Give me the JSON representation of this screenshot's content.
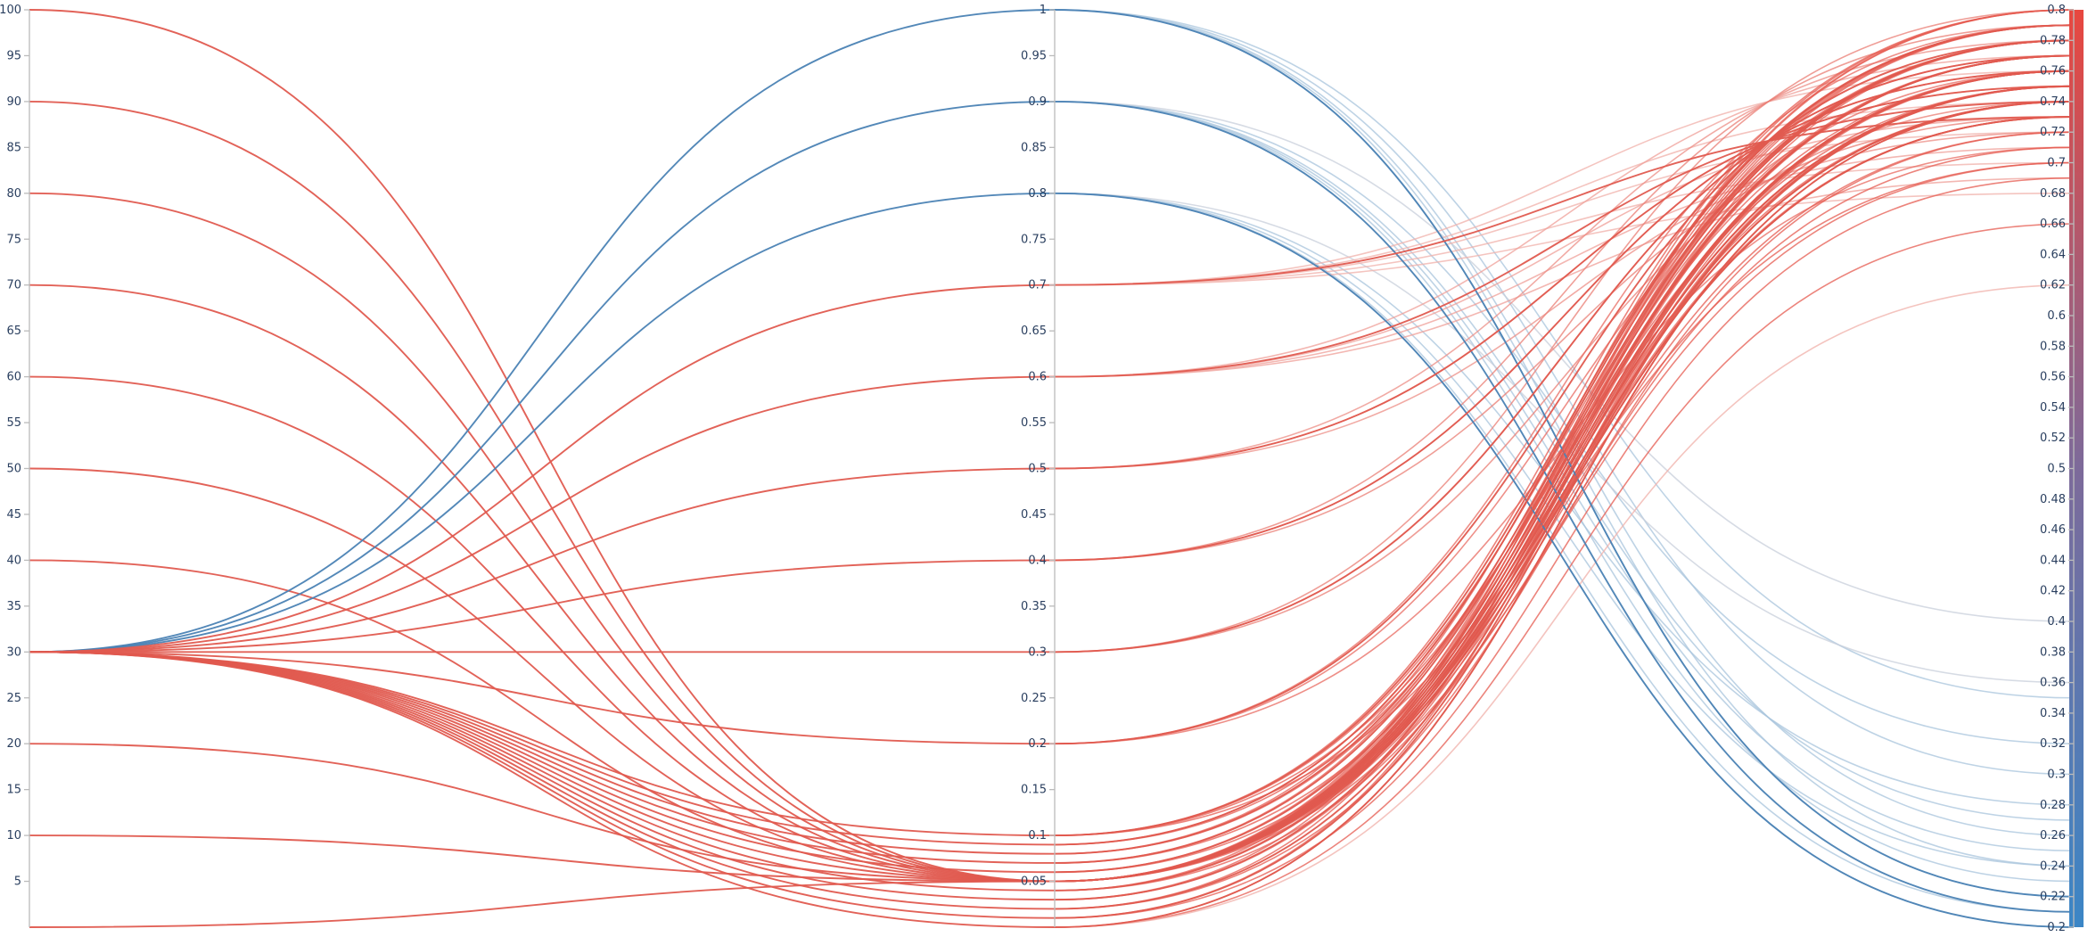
{
  "chart_data": {
    "type": "parallel-categories-curves",
    "colorscale": {
      "min": 0.2,
      "max": 0.8,
      "low_color": "#3b86c6",
      "high_color": "#e8473f"
    },
    "axes": [
      {
        "name": "",
        "range": [
          0,
          100
        ],
        "ticks": [
          5,
          10,
          15,
          20,
          25,
          30,
          35,
          40,
          45,
          50,
          55,
          60,
          65,
          70,
          75,
          80,
          85,
          90,
          95,
          100
        ],
        "tick_labels": [
          "5",
          "10",
          "15",
          "20",
          "25",
          "30",
          "35",
          "40",
          "45",
          "50",
          "55",
          "60",
          "65",
          "70",
          "75",
          "80",
          "85",
          "90",
          "95",
          "100"
        ]
      },
      {
        "name": "",
        "range": [
          0,
          1
        ],
        "ticks": [
          0.05,
          0.1,
          0.15,
          0.2,
          0.25,
          0.3,
          0.35,
          0.4,
          0.45,
          0.5,
          0.55,
          0.6,
          0.65,
          0.7,
          0.75,
          0.8,
          0.85,
          0.9,
          0.95,
          1
        ],
        "tick_labels": [
          "0.05",
          "0.1",
          "0.15",
          "0.2",
          "0.25",
          "0.3",
          "0.35",
          "0.4",
          "0.45",
          "0.5",
          "0.55",
          "0.6",
          "0.65",
          "0.7",
          "0.75",
          "0.8",
          "0.85",
          "0.9",
          "0.95",
          "1"
        ]
      },
      {
        "name": "",
        "range": [
          0.2,
          0.8
        ],
        "ticks": [
          0.2,
          0.22,
          0.24,
          0.26,
          0.28,
          0.3,
          0.32,
          0.34,
          0.36,
          0.38,
          0.4,
          0.42,
          0.44,
          0.46,
          0.48,
          0.5,
          0.52,
          0.54,
          0.56,
          0.58,
          0.6,
          0.62,
          0.64,
          0.66,
          0.68,
          0.7,
          0.72,
          0.74,
          0.76,
          0.78,
          0.8
        ],
        "tick_labels": [
          "0.2",
          "0.22",
          "0.24",
          "0.26",
          "0.28",
          "0.3",
          "0.32",
          "0.34",
          "0.36",
          "0.38",
          "0.4",
          "0.42",
          "0.44",
          "0.46",
          "0.48",
          "0.5",
          "0.52",
          "0.54",
          "0.56",
          "0.58",
          "0.6",
          "0.62",
          "0.64",
          "0.66",
          "0.68",
          "0.7",
          "0.72",
          "0.74",
          "0.76",
          "0.78",
          "0.8"
        ],
        "colorbar": true
      }
    ],
    "solid_lines": [
      {
        "values": [
          100,
          0.05,
          0.78
        ],
        "color": "#e05a4f"
      },
      {
        "values": [
          90,
          0.05,
          0.77
        ],
        "color": "#e05a4f"
      },
      {
        "values": [
          80,
          0.05,
          0.76
        ],
        "color": "#e05a4f"
      },
      {
        "values": [
          70,
          0.05,
          0.76
        ],
        "color": "#e05a4f"
      },
      {
        "values": [
          60,
          0.05,
          0.75
        ],
        "color": "#e05a4f"
      },
      {
        "values": [
          50,
          0.05,
          0.75
        ],
        "color": "#e05a4f"
      },
      {
        "values": [
          40,
          0.05,
          0.74
        ],
        "color": "#e05a4f"
      },
      {
        "values": [
          20,
          0.05,
          0.74
        ],
        "color": "#e05a4f"
      },
      {
        "values": [
          10,
          0.05,
          0.73
        ],
        "color": "#e05a4f"
      },
      {
        "values": [
          0,
          0.05,
          0.73
        ],
        "color": "#e05a4f"
      },
      {
        "values": [
          30,
          1,
          0.22
        ],
        "color": "#4a82b4"
      },
      {
        "values": [
          30,
          0.9,
          0.21
        ],
        "color": "#4a82b4"
      },
      {
        "values": [
          30,
          0.8,
          0.2
        ],
        "color": "#4a82b4"
      },
      {
        "values": [
          30,
          0.7,
          0.73
        ],
        "color": "#e05a4f"
      },
      {
        "values": [
          30,
          0.6,
          0.74
        ],
        "color": "#e05a4f"
      },
      {
        "values": [
          30,
          0.5,
          0.75
        ],
        "color": "#e05a4f"
      },
      {
        "values": [
          30,
          0.4,
          0.76
        ],
        "color": "#e05a4f"
      },
      {
        "values": [
          30,
          0.3,
          0.77
        ],
        "color": "#e05a4f"
      },
      {
        "values": [
          30,
          0.2,
          0.78
        ],
        "color": "#e05a4f"
      },
      {
        "values": [
          30,
          0.1,
          0.79
        ],
        "color": "#e05a4f"
      },
      {
        "values": [
          30,
          0.09,
          0.79
        ],
        "color": "#e05a4f"
      },
      {
        "values": [
          30,
          0.08,
          0.78
        ],
        "color": "#e05a4f"
      },
      {
        "values": [
          30,
          0.07,
          0.78
        ],
        "color": "#e05a4f"
      },
      {
        "values": [
          30,
          0.06,
          0.77
        ],
        "color": "#e05a4f"
      },
      {
        "values": [
          30,
          0.05,
          0.77
        ],
        "color": "#e05a4f"
      },
      {
        "values": [
          30,
          0.04,
          0.76
        ],
        "color": "#e05a4f"
      },
      {
        "values": [
          30,
          0.03,
          0.76
        ],
        "color": "#e05a4f"
      },
      {
        "values": [
          30,
          0.02,
          0.75
        ],
        "color": "#e05a4f"
      },
      {
        "values": [
          30,
          0.01,
          0.75
        ],
        "color": "#e05a4f"
      },
      {
        "values": [
          30,
          0,
          0.74
        ],
        "color": "#e05a4f"
      }
    ],
    "faint_lines": [
      {
        "values": [
          1,
          0.35
        ],
        "color": "#a8c4dc"
      },
      {
        "values": [
          1,
          0.3
        ],
        "color": "#a8c4dc"
      },
      {
        "values": [
          1,
          0.26
        ],
        "color": "#a8c4dc"
      },
      {
        "values": [
          1,
          0.24
        ],
        "color": "#a8c4dc"
      },
      {
        "values": [
          1,
          0.22
        ],
        "color": "#a8c4dc"
      },
      {
        "values": [
          0.9,
          0.4
        ],
        "color": "#c8cfdb"
      },
      {
        "values": [
          0.9,
          0.32
        ],
        "color": "#a8c4dc"
      },
      {
        "values": [
          0.9,
          0.27
        ],
        "color": "#a8c4dc"
      },
      {
        "values": [
          0.9,
          0.25
        ],
        "color": "#a8c4dc"
      },
      {
        "values": [
          0.9,
          0.23
        ],
        "color": "#a8c4dc"
      },
      {
        "values": [
          0.8,
          0.36
        ],
        "color": "#c8cfdb"
      },
      {
        "values": [
          0.8,
          0.28
        ],
        "color": "#a8c4dc"
      },
      {
        "values": [
          0.8,
          0.24
        ],
        "color": "#a8c4dc"
      },
      {
        "values": [
          0.8,
          0.21
        ],
        "color": "#a8c4dc"
      },
      {
        "values": [
          0.8,
          0.2
        ],
        "color": "#a8c4dc"
      },
      {
        "values": [
          0.7,
          0.74
        ],
        "color": "#f0b0aa"
      },
      {
        "values": [
          0.7,
          0.72
        ],
        "color": "#f0b0aa"
      },
      {
        "values": [
          0.7,
          0.7
        ],
        "color": "#f0b0aa"
      },
      {
        "values": [
          0.7,
          0.68
        ],
        "color": "#f0b0aa"
      },
      {
        "values": [
          0.7,
          0.76
        ],
        "color": "#f0b0aa"
      },
      {
        "values": [
          0.6,
          0.77
        ],
        "color": "#ef9f98"
      },
      {
        "values": [
          0.6,
          0.73
        ],
        "color": "#ef9f98"
      },
      {
        "values": [
          0.6,
          0.71
        ],
        "color": "#ef9f98"
      },
      {
        "values": [
          0.6,
          0.69
        ],
        "color": "#ef9f98"
      },
      {
        "values": [
          0.5,
          0.78
        ],
        "color": "#ec8d85"
      },
      {
        "values": [
          0.5,
          0.75
        ],
        "color": "#ec8d85"
      },
      {
        "values": [
          0.5,
          0.72
        ],
        "color": "#ec8d85"
      },
      {
        "values": [
          0.4,
          0.79
        ],
        "color": "#ea7d74"
      },
      {
        "values": [
          0.4,
          0.76
        ],
        "color": "#ea7d74"
      },
      {
        "values": [
          0.4,
          0.73
        ],
        "color": "#ea7d74"
      },
      {
        "values": [
          0.3,
          0.8
        ],
        "color": "#ea7d74"
      },
      {
        "values": [
          0.3,
          0.77
        ],
        "color": "#ea7d74"
      },
      {
        "values": [
          0.3,
          0.74
        ],
        "color": "#ea7d74"
      },
      {
        "values": [
          0.2,
          0.79
        ],
        "color": "#e86a60"
      },
      {
        "values": [
          0.2,
          0.76
        ],
        "color": "#e86a60"
      },
      {
        "values": [
          0.2,
          0.71
        ],
        "color": "#e86a60"
      },
      {
        "values": [
          0.1,
          0.8
        ],
        "color": "#e55b50"
      },
      {
        "values": [
          0.1,
          0.78
        ],
        "color": "#e55b50"
      },
      {
        "values": [
          0.1,
          0.75
        ],
        "color": "#e55b50"
      },
      {
        "values": [
          0.1,
          0.7
        ],
        "color": "#e55b50"
      },
      {
        "values": [
          0.09,
          0.79
        ],
        "color": "#e55b50"
      },
      {
        "values": [
          0.09,
          0.76
        ],
        "color": "#e55b50"
      },
      {
        "values": [
          0.08,
          0.8
        ],
        "color": "#e55b50"
      },
      {
        "values": [
          0.08,
          0.77
        ],
        "color": "#e55b50"
      },
      {
        "values": [
          0.07,
          0.79
        ],
        "color": "#e55b50"
      },
      {
        "values": [
          0.07,
          0.74
        ],
        "color": "#e55b50"
      },
      {
        "values": [
          0.06,
          0.78
        ],
        "color": "#e55b50"
      },
      {
        "values": [
          0.06,
          0.73
        ],
        "color": "#e55b50"
      },
      {
        "values": [
          0.05,
          0.8
        ],
        "color": "#e55b50"
      },
      {
        "values": [
          0.05,
          0.79
        ],
        "color": "#e55b50"
      },
      {
        "values": [
          0.05,
          0.78
        ],
        "color": "#e55b50"
      },
      {
        "values": [
          0.05,
          0.77
        ],
        "color": "#e55b50"
      },
      {
        "values": [
          0.05,
          0.76
        ],
        "color": "#e55b50"
      },
      {
        "values": [
          0.05,
          0.75
        ],
        "color": "#e55b50"
      },
      {
        "values": [
          0.05,
          0.74
        ],
        "color": "#e55b50"
      },
      {
        "values": [
          0.05,
          0.72
        ],
        "color": "#e55b50"
      },
      {
        "values": [
          0.05,
          0.7
        ],
        "color": "#e55b50"
      },
      {
        "values": [
          0.04,
          0.8
        ],
        "color": "#e55b50"
      },
      {
        "values": [
          0.04,
          0.77
        ],
        "color": "#e55b50"
      },
      {
        "values": [
          0.04,
          0.71
        ],
        "color": "#e55b50"
      },
      {
        "values": [
          0.03,
          0.79
        ],
        "color": "#e55b50"
      },
      {
        "values": [
          0.03,
          0.75
        ],
        "color": "#e55b50"
      },
      {
        "values": [
          0.02,
          0.78
        ],
        "color": "#e55b50"
      },
      {
        "values": [
          0.02,
          0.72
        ],
        "color": "#e55b50"
      },
      {
        "values": [
          0.01,
          0.76
        ],
        "color": "#e55b50"
      },
      {
        "values": [
          0.01,
          0.69
        ],
        "color": "#e55b50"
      },
      {
        "values": [
          0,
          0.74
        ],
        "color": "#e55b50"
      },
      {
        "values": [
          0,
          0.66
        ],
        "color": "#e55b50"
      },
      {
        "values": [
          0,
          0.62
        ],
        "color": "#f0b0aa"
      }
    ]
  }
}
